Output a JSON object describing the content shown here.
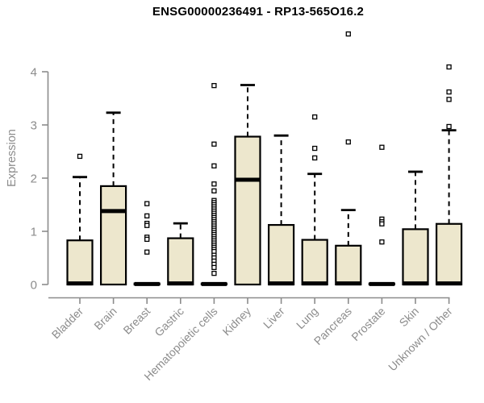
{
  "chart_data": {
    "type": "boxplot",
    "title": "ENSG00000236491 - RP13-565O16.2",
    "ylabel": "Expression",
    "ylim": [
      0,
      4
    ],
    "yticks": [
      0,
      1,
      2,
      3,
      4
    ],
    "grid": false,
    "legend": "none",
    "categories": [
      "Bladder",
      "Brain",
      "Breast",
      "Gastric",
      "Hematopoietic cells",
      "Kidney",
      "Liver",
      "Lung",
      "Pancreas",
      "Prostate",
      "Skin",
      "Unknown / Other"
    ],
    "series": [
      {
        "category": "Bladder",
        "q1": 0,
        "median": 0.02,
        "q3": 0.83,
        "whisker_low": 0,
        "whisker_high": 2.02,
        "outliers": [
          2.41
        ]
      },
      {
        "category": "Brain",
        "q1": 0,
        "median": 1.38,
        "q3": 1.85,
        "whisker_low": 0,
        "whisker_high": 3.23,
        "outliers": []
      },
      {
        "category": "Breast",
        "q1": 0,
        "median": 0.01,
        "q3": 0.02,
        "whisker_low": 0,
        "whisker_high": 0.02,
        "outliers": [
          1.52,
          1.29,
          1.15,
          1.11,
          0.89,
          0.85,
          0.61
        ]
      },
      {
        "category": "Gastric",
        "q1": 0,
        "median": 0.02,
        "q3": 0.87,
        "whisker_low": 0,
        "whisker_high": 1.15,
        "outliers": []
      },
      {
        "category": "Hematopoietic cells",
        "q1": 0,
        "median": 0.01,
        "q3": 0.02,
        "whisker_low": 0,
        "whisker_high": 0.02,
        "outliers": [
          3.74,
          2.64,
          2.23,
          1.89,
          1.76,
          1.58,
          1.54,
          1.5,
          1.46,
          1.42,
          1.38,
          1.34,
          1.3,
          1.26,
          1.22,
          1.18,
          1.14,
          1.1,
          1.06,
          1.02,
          0.98,
          0.94,
          0.9,
          0.86,
          0.82,
          0.78,
          0.74,
          0.7,
          0.66,
          0.62,
          0.55,
          0.5,
          0.44,
          0.38,
          0.32,
          0.21
        ]
      },
      {
        "category": "Kidney",
        "q1": 0,
        "median": 1.97,
        "q3": 2.78,
        "whisker_low": 0,
        "whisker_high": 3.75,
        "outliers": []
      },
      {
        "category": "Liver",
        "q1": 0,
        "median": 0.02,
        "q3": 1.12,
        "whisker_low": 0,
        "whisker_high": 2.8,
        "outliers": []
      },
      {
        "category": "Lung",
        "q1": 0,
        "median": 0.02,
        "q3": 0.84,
        "whisker_low": 0,
        "whisker_high": 2.08,
        "outliers": [
          3.15,
          2.56,
          2.38
        ]
      },
      {
        "category": "Pancreas",
        "q1": 0,
        "median": 0.02,
        "q3": 0.73,
        "whisker_low": 0,
        "whisker_high": 1.4,
        "outliers": [
          4.71,
          2.68
        ]
      },
      {
        "category": "Prostate",
        "q1": 0,
        "median": 0.01,
        "q3": 0.02,
        "whisker_low": 0,
        "whisker_high": 0.02,
        "outliers": [
          2.58,
          1.23,
          1.18,
          1.14,
          0.8
        ]
      },
      {
        "category": "Skin",
        "q1": 0,
        "median": 0.02,
        "q3": 1.04,
        "whisker_low": 0,
        "whisker_high": 2.12,
        "outliers": []
      },
      {
        "category": "Unknown / Other",
        "q1": 0,
        "median": 0.02,
        "q3": 1.14,
        "whisker_low": 0,
        "whisker_high": 2.9,
        "outliers": [
          4.09,
          3.62,
          3.48,
          2.97
        ]
      }
    ],
    "colors": {
      "background": "#ffffff",
      "box_fill": "#ede7cd",
      "box_border": "#000000",
      "outlier_fill": "#ffffff",
      "axis": "#8c8c8c",
      "title": "#000000"
    }
  }
}
